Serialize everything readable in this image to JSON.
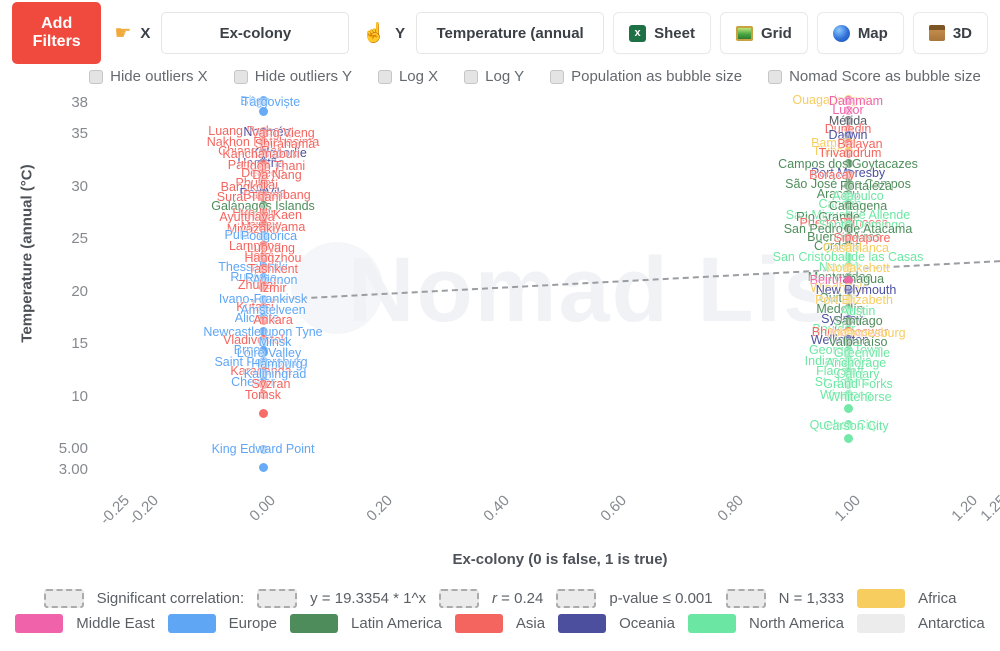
{
  "toolbar": {
    "add_filters_label": "Add Filters",
    "x_hand_icon": "☛",
    "x_label": "X",
    "x_value": "Ex-colony",
    "y_hand_icon": "☝",
    "y_label": "Y",
    "y_value": "Temperature (annual",
    "views": [
      {
        "icon": "sheet-icon",
        "label": "Sheet"
      },
      {
        "icon": "grid-icon",
        "label": "Grid"
      },
      {
        "icon": "map-icon",
        "label": "Map"
      },
      {
        "icon": "3d-icon",
        "label": "3D"
      }
    ]
  },
  "options": [
    "Hide outliers X",
    "Hide outliers Y",
    "Log X",
    "Log Y",
    "Population as bubble size",
    "Nomad Score as bubble size"
  ],
  "chart_data": {
    "type": "scatter",
    "title": "",
    "xlabel": "Ex-colony (0 is false, 1 is true)",
    "ylabel": "Temperature (annual (°C)",
    "watermark": "Nomad List",
    "xlim": [
      -0.3,
      1.3
    ],
    "ylim": [
      2,
      39
    ],
    "grid": false,
    "x_ticks": [
      {
        "label": "-0.25",
        "v": -0.25
      },
      {
        "label": "-0.20",
        "v": -0.2
      },
      {
        "label": "0.00",
        "v": 0
      },
      {
        "label": "0.20",
        "v": 0.2
      },
      {
        "label": "0.40",
        "v": 0.4
      },
      {
        "label": "0.60",
        "v": 0.6
      },
      {
        "label": "0.80",
        "v": 0.8
      },
      {
        "label": "1.00",
        "v": 1
      },
      {
        "label": "1.20",
        "v": 1.2
      },
      {
        "label": "1.25",
        "v": 1.25
      }
    ],
    "y_ticks": [
      {
        "label": "38",
        "v": 38
      },
      {
        "label": "35",
        "v": 35
      },
      {
        "label": "30",
        "v": 30
      },
      {
        "label": "25",
        "v": 25
      },
      {
        "label": "20",
        "v": 20
      },
      {
        "label": "15",
        "v": 15
      },
      {
        "label": "10",
        "v": 10
      },
      {
        "label": "5.00",
        "v": 5
      },
      {
        "label": "3.00",
        "v": 3
      }
    ],
    "trend_line": {
      "x1": -0.02,
      "t1": 19.2,
      "x2": 1.26,
      "t2": 23.0,
      "style": "dashed"
    },
    "continent_colors": {
      "AF": "#f7cd5f",
      "ME": "#f063aa",
      "EU": "#5fa6f5",
      "LA": "#4e8d5b",
      "AS": "#f4655f",
      "OC": "#4b4f9e",
      "NA": "#6ce7a3",
      "AN": "#ececec",
      "DK": "#555b63"
    },
    "points": [
      {
        "n": "Birgu",
        "t": 38.2,
        "x": 0,
        "c": "EU",
        "dx": -8
      },
      {
        "n": "Târgoviște",
        "t": 38.1,
        "x": 0,
        "c": "EU",
        "dx": 8
      },
      {
        "n": "",
        "t": 37.2,
        "x": 0,
        "c": "EU",
        "dx": 0
      },
      {
        "n": "Luang Prabang",
        "t": 35.3,
        "x": 0,
        "c": "AS",
        "dx": -12
      },
      {
        "n": "Nouméa",
        "t": 35.2,
        "x": 0,
        "c": "OC",
        "dx": 4
      },
      {
        "n": "Vang Vieng",
        "t": 35.1,
        "x": 0,
        "c": "AS",
        "dx": 20
      },
      {
        "n": "Nakhon Ratchasima",
        "t": 34.3,
        "x": 0,
        "c": "AS",
        "dx": 0
      },
      {
        "n": "Shirahama",
        "t": 34.1,
        "x": 0,
        "c": "AS",
        "dx": 22
      },
      {
        "n": "Chiang Rai",
        "t": 33.4,
        "x": 0,
        "c": "AS",
        "dx": -14
      },
      {
        "n": "Kalgoorlie",
        "t": 33.2,
        "x": 0,
        "c": "OC",
        "dx": 16
      },
      {
        "n": "Kanchanaburi",
        "t": 33.1,
        "x": 0,
        "c": "AS",
        "dx": -2
      },
      {
        "n": "Hagåtña",
        "t": 32.3,
        "x": 0,
        "c": "OC",
        "dx": -2
      },
      {
        "n": "Pattaya",
        "t": 32.1,
        "x": 0,
        "c": "AS",
        "dx": -14
      },
      {
        "n": "Udon Thani",
        "t": 32.0,
        "x": 0,
        "c": "AS",
        "dx": 10
      },
      {
        "n": "Dededo",
        "t": 31.3,
        "x": 0,
        "c": "AS",
        "dx": 0
      },
      {
        "n": "Da Nang",
        "t": 31.1,
        "x": 0,
        "c": "AS",
        "dx": 14
      },
      {
        "n": "Phuket",
        "t": 30.4,
        "x": 0,
        "c": "AS",
        "dx": -8
      },
      {
        "n": "Pai",
        "t": 30.2,
        "x": 0,
        "c": "AS",
        "dx": 6
      },
      {
        "n": "Bangkok",
        "t": 30.0,
        "x": 0,
        "c": "AS",
        "dx": -18
      },
      {
        "n": "Port Vila",
        "t": 29.4,
        "x": 0,
        "c": "OC",
        "dx": 0
      },
      {
        "n": "Battambang",
        "t": 29.2,
        "x": 0,
        "c": "AS",
        "dx": 14
      },
      {
        "n": "Surat Thani",
        "t": 29.0,
        "x": 0,
        "c": "AS",
        "dx": -14
      },
      {
        "n": "Galápagos Islands",
        "t": 28.2,
        "x": 0,
        "c": "LA",
        "dx": 0
      },
      {
        "n": "Hua Hin",
        "t": 27.5,
        "x": 0,
        "c": "AS",
        "dx": -8
      },
      {
        "n": "Khon Kaen",
        "t": 27.3,
        "x": 0,
        "c": "AS",
        "dx": 8
      },
      {
        "n": "Ayutthaya",
        "t": 27.1,
        "x": 0,
        "c": "AS",
        "dx": -16
      },
      {
        "n": "Hsipaw",
        "t": 26.4,
        "x": 0,
        "c": "AS",
        "dx": -2
      },
      {
        "n": "Matsuyama",
        "t": 26.2,
        "x": 0,
        "c": "AS",
        "dx": 10
      },
      {
        "n": "Miyazaki",
        "t": 26.0,
        "x": 0,
        "c": "AS",
        "dx": -12
      },
      {
        "n": "Pula",
        "t": 25.4,
        "x": 0,
        "c": "EU",
        "dx": -26
      },
      {
        "n": "Podgorica",
        "t": 25.3,
        "x": 0,
        "c": "EU",
        "dx": 6
      },
      {
        "n": "Lampang",
        "t": 24.4,
        "x": 0,
        "c": "AS",
        "dx": -8
      },
      {
        "n": "Luoyang",
        "t": 24.2,
        "x": 0,
        "c": "AS",
        "dx": 8
      },
      {
        "n": "Hefei",
        "t": 23.4,
        "x": 0,
        "c": "AS",
        "dx": -4
      },
      {
        "n": "Hangzhou",
        "t": 23.2,
        "x": 0,
        "c": "AS",
        "dx": 10
      },
      {
        "n": "Thessaloniki",
        "t": 22.4,
        "x": 0,
        "c": "EU",
        "dx": -10
      },
      {
        "n": "Tashkent",
        "t": 22.2,
        "x": 0,
        "c": "AS",
        "dx": 10
      },
      {
        "n": "Ruse",
        "t": 21.4,
        "x": 0,
        "c": "EU",
        "dx": -18
      },
      {
        "n": "Rivne",
        "t": 21.3,
        "x": 0,
        "c": "EU",
        "dx": -2
      },
      {
        "n": "Avignon",
        "t": 21.1,
        "x": 0,
        "c": "EU",
        "dx": 12
      },
      {
        "n": "Zhuhai",
        "t": 20.6,
        "x": 0,
        "c": "AS",
        "dx": -6
      },
      {
        "n": "Izmir",
        "t": 20.4,
        "x": 0,
        "c": "AS",
        "dx": 10
      },
      {
        "n": "Ivano-Frankivsk",
        "t": 19.3,
        "x": 0,
        "c": "EU",
        "dx": 0
      },
      {
        "n": "Kutaisi",
        "t": 18.5,
        "x": 0,
        "c": "AS",
        "dx": -8
      },
      {
        "n": "Amstelveen",
        "t": 18.3,
        "x": 0,
        "c": "EU",
        "dx": 10
      },
      {
        "n": "Alicante",
        "t": 17.5,
        "x": 0,
        "c": "EU",
        "dx": -6
      },
      {
        "n": "Ankara",
        "t": 17.3,
        "x": 0,
        "c": "AS",
        "dx": 10
      },
      {
        "n": "Newcastle upon Tyne",
        "t": 16.2,
        "x": 0,
        "c": "EU",
        "dx": 0
      },
      {
        "n": "Vladivostok",
        "t": 15.4,
        "x": 0,
        "c": "AS",
        "dx": -8
      },
      {
        "n": "Minsk",
        "t": 15.2,
        "x": 0,
        "c": "EU",
        "dx": 12
      },
      {
        "n": "Brno",
        "t": 14.4,
        "x": 0,
        "c": "EU",
        "dx": -16
      },
      {
        "n": "Loire Valley",
        "t": 14.2,
        "x": 0,
        "c": "EU",
        "dx": 6
      },
      {
        "n": "Saint Petersburg",
        "t": 13.3,
        "x": 0,
        "c": "EU",
        "dx": -2
      },
      {
        "n": "Hamburg",
        "t": 13.1,
        "x": 0,
        "c": "EU",
        "dx": 14
      },
      {
        "n": "Karaganda",
        "t": 12.4,
        "x": 0,
        "c": "AS",
        "dx": -2
      },
      {
        "n": "Kaliningrad",
        "t": 12.2,
        "x": 0,
        "c": "EU",
        "dx": 12
      },
      {
        "n": "Chester",
        "t": 11.4,
        "x": 0,
        "c": "EU",
        "dx": -10
      },
      {
        "n": "Syzran",
        "t": 11.2,
        "x": 0,
        "c": "AS",
        "dx": 8
      },
      {
        "n": "Tomsk",
        "t": 10.2,
        "x": 0,
        "c": "AS",
        "dx": 0
      },
      {
        "n": "",
        "t": 8.4,
        "x": 0,
        "c": "AS",
        "dx": 0
      },
      {
        "n": "King Edward Point",
        "t": 5.0,
        "x": 0,
        "c": "EU",
        "dx": 0
      },
      {
        "n": "",
        "t": 3.2,
        "x": 0,
        "c": "EU",
        "dx": 0
      },
      {
        "n": "Ouagadougou",
        "t": 38.3,
        "x": 1,
        "c": "AF",
        "dx": -16
      },
      {
        "n": "Dammam",
        "t": 38.2,
        "x": 1,
        "c": "ME",
        "dx": 8
      },
      {
        "n": "Luxor",
        "t": 37.3,
        "x": 1,
        "c": "ME",
        "dx": 0
      },
      {
        "n": "Mérida",
        "t": 36.3,
        "x": 1,
        "c": "DK",
        "dx": 0
      },
      {
        "n": "Dunedin",
        "t": 35.5,
        "x": 1,
        "c": "AS",
        "dx": 0
      },
      {
        "n": "Darwin",
        "t": 34.9,
        "x": 1,
        "c": "OC",
        "dx": 0
      },
      {
        "n": "Bamako",
        "t": 34.2,
        "x": 1,
        "c": "AF",
        "dx": -14
      },
      {
        "n": "Balayan",
        "t": 34.1,
        "x": 1,
        "c": "AS",
        "dx": 12
      },
      {
        "n": "Thiès",
        "t": 33.4,
        "x": 1,
        "c": "AF",
        "dx": -20
      },
      {
        "n": "Trivandrum",
        "t": 33.2,
        "x": 1,
        "c": "AS",
        "dx": 2
      },
      {
        "n": "Campos dos Goytacazes",
        "t": 32.2,
        "x": 1,
        "c": "LA",
        "dx": 0
      },
      {
        "n": "Port Moresby",
        "t": 31.3,
        "x": 1,
        "c": "OC",
        "dx": 0
      },
      {
        "n": "Boracay",
        "t": 31.1,
        "x": 1,
        "c": "AS",
        "dx": -16
      },
      {
        "n": "São José dos Campos",
        "t": 30.3,
        "x": 1,
        "c": "LA",
        "dx": 0
      },
      {
        "n": "Fortaleza",
        "t": 30.1,
        "x": 1,
        "c": "LA",
        "dx": 18
      },
      {
        "n": "Aracaju",
        "t": 29.3,
        "x": 1,
        "c": "LA",
        "dx": -10
      },
      {
        "n": "Acapulco",
        "t": 29.1,
        "x": 1,
        "c": "NA",
        "dx": 10
      },
      {
        "n": "Cancún",
        "t": 28.4,
        "x": 1,
        "c": "NA",
        "dx": -8
      },
      {
        "n": "Cartagena",
        "t": 28.2,
        "x": 1,
        "c": "LA",
        "dx": 10
      },
      {
        "n": "San Miguel de Allende",
        "t": 27.3,
        "x": 1,
        "c": "NA",
        "dx": 0
      },
      {
        "n": "Rio Grande",
        "t": 27.1,
        "x": 1,
        "c": "LA",
        "dx": -20
      },
      {
        "n": "Puerto Princesa",
        "t": 26.6,
        "x": 1,
        "c": "AS",
        "dx": -4
      },
      {
        "n": "Santo Domingo",
        "t": 26.4,
        "x": 1,
        "c": "NA",
        "dx": 14
      },
      {
        "n": "San Pedro de Atacama",
        "t": 26.0,
        "x": 1,
        "c": "LA",
        "dx": 0
      },
      {
        "n": "Buenos Aires",
        "t": 25.2,
        "x": 1,
        "c": "LA",
        "dx": -4
      },
      {
        "n": "Singapore",
        "t": 25.1,
        "x": 1,
        "c": "AS",
        "dx": 14
      },
      {
        "n": "Córdoba",
        "t": 24.4,
        "x": 1,
        "c": "LA",
        "dx": -10
      },
      {
        "n": "Casablanca",
        "t": 24.2,
        "x": 1,
        "c": "AF",
        "dx": 8
      },
      {
        "n": "San Cristóbal de las Casas",
        "t": 23.3,
        "x": 1,
        "c": "NA",
        "dx": 0
      },
      {
        "n": "Newark",
        "t": 22.4,
        "x": 1,
        "c": "NA",
        "dx": -8
      },
      {
        "n": "Nouakchott",
        "t": 22.3,
        "x": 1,
        "c": "AF",
        "dx": 10
      },
      {
        "n": "Montevideo",
        "t": 21.4,
        "x": 1,
        "c": "LA",
        "dx": -8
      },
      {
        "n": "Managua",
        "t": 21.2,
        "x": 1,
        "c": "LA",
        "dx": 10
      },
      {
        "n": "Beirut",
        "t": 21.1,
        "x": 1,
        "c": "ME",
        "dx": -22
      },
      {
        "n": "Windhoek",
        "t": 20.4,
        "x": 1,
        "c": "AF",
        "dx": -10
      },
      {
        "n": "New Plymouth",
        "t": 20.2,
        "x": 1,
        "c": "OC",
        "dx": 8
      },
      {
        "n": "Quito",
        "t": 19.4,
        "x": 1,
        "c": "LA",
        "dx": -14
      },
      {
        "n": "Port Elizabeth",
        "t": 19.2,
        "x": 1,
        "c": "AF",
        "dx": 6
      },
      {
        "n": "Medellín",
        "t": 18.4,
        "x": 1,
        "c": "LA",
        "dx": -8
      },
      {
        "n": "Austin",
        "t": 18.2,
        "x": 1,
        "c": "NA",
        "dx": 10
      },
      {
        "n": "Sydney",
        "t": 17.4,
        "x": 1,
        "c": "OC",
        "dx": -6
      },
      {
        "n": "Santiago",
        "t": 17.2,
        "x": 1,
        "c": "LA",
        "dx": 10
      },
      {
        "n": "Boulder",
        "t": 16.4,
        "x": 1,
        "c": "NA",
        "dx": -14
      },
      {
        "n": "Bhubaneswar",
        "t": 16.2,
        "x": 1,
        "c": "AS",
        "dx": 2
      },
      {
        "n": "Johannesburg",
        "t": 16.1,
        "x": 1,
        "c": "AF",
        "dx": 18
      },
      {
        "n": "Wellington",
        "t": 15.4,
        "x": 1,
        "c": "OC",
        "dx": -8
      },
      {
        "n": "Valparaíso",
        "t": 15.2,
        "x": 1,
        "c": "LA",
        "dx": 10
      },
      {
        "n": "George Town",
        "t": 14.4,
        "x": 1,
        "c": "NA",
        "dx": -2
      },
      {
        "n": "Greenville",
        "t": 14.2,
        "x": 1,
        "c": "NA",
        "dx": 14
      },
      {
        "n": "Indianapolis",
        "t": 13.4,
        "x": 1,
        "c": "NA",
        "dx": -10
      },
      {
        "n": "Anchorage",
        "t": 13.2,
        "x": 1,
        "c": "NA",
        "dx": 8
      },
      {
        "n": "Flagstaff",
        "t": 12.4,
        "x": 1,
        "c": "NA",
        "dx": -8
      },
      {
        "n": "Calgary",
        "t": 12.2,
        "x": 1,
        "c": "NA",
        "dx": 10
      },
      {
        "n": "St. John's",
        "t": 11.4,
        "x": 1,
        "c": "NA",
        "dx": -6
      },
      {
        "n": "Grand Forks",
        "t": 11.2,
        "x": 1,
        "c": "NA",
        "dx": 10
      },
      {
        "n": "Winnipeg",
        "t": 10.2,
        "x": 1,
        "c": "NA",
        "dx": -2
      },
      {
        "n": "Whitehorse",
        "t": 10.0,
        "x": 1,
        "c": "NA",
        "dx": 12
      },
      {
        "n": "",
        "t": 8.9,
        "x": 1,
        "c": "NA",
        "dx": 0
      },
      {
        "n": "Quebec City",
        "t": 7.3,
        "x": 1,
        "c": "NA",
        "dx": -4
      },
      {
        "n": "Carson City",
        "t": 7.2,
        "x": 1,
        "c": "NA",
        "dx": 8
      },
      {
        "n": "",
        "t": 6.0,
        "x": 1,
        "c": "NA",
        "dx": 0
      }
    ]
  },
  "stats": {
    "label": "Significant correlation:",
    "equation": "y = 19.3354 * 1^x",
    "r_label": "r",
    "r_value": " = 0.24",
    "p": "p-value ≤ 0.001",
    "n": "N = 1,333"
  },
  "legend": [
    {
      "name": "Africa",
      "color": "#f7cd5f"
    },
    {
      "name": "Middle East",
      "color": "#f063aa"
    },
    {
      "name": "Europe",
      "color": "#5fa6f5"
    },
    {
      "name": "Latin America",
      "color": "#4e8d5b"
    },
    {
      "name": "Asia",
      "color": "#f4655f"
    },
    {
      "name": "Oceania",
      "color": "#4b4f9e"
    },
    {
      "name": "North America",
      "color": "#6ce7a3"
    },
    {
      "name": "Antarctica",
      "color": "#ececec"
    }
  ]
}
